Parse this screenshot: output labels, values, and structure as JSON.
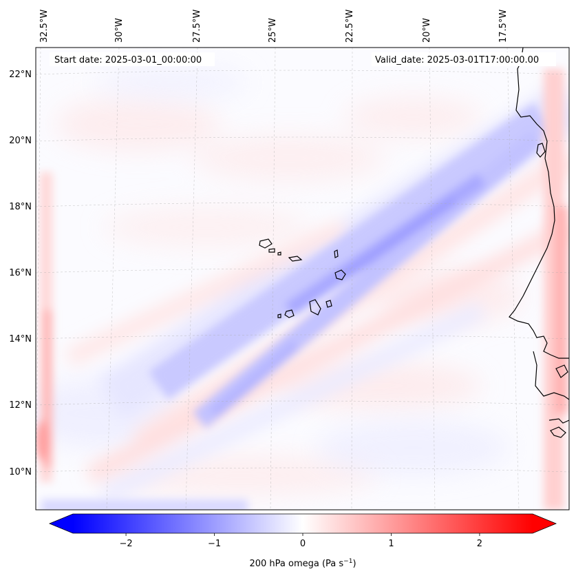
{
  "map": {
    "start_date": "Start date: 2025-03-01_00:00:00",
    "valid_date": "Valid_date: 2025-03-01T17:00:00.00",
    "lon_labels": [
      "32.5°W",
      "30°W",
      "27.5°W",
      "25°W",
      "22.5°W",
      "20°W",
      "17.5°W"
    ],
    "lat_labels": [
      "22°N",
      "20°N",
      "18°N",
      "16°N",
      "14°N",
      "12°N",
      "10°N"
    ],
    "field": "200 hPa omega",
    "field_units": "Pa s−1"
  },
  "colorbar": {
    "label_main": "200 hPa omega (Pa s",
    "label_sup": "−1",
    "label_close": ")",
    "ticks": [
      "−2",
      "−1",
      "0",
      "1",
      "2"
    ],
    "tick_values": [
      -2,
      -1,
      0,
      1,
      2
    ],
    "range": [
      -2.6,
      2.6
    ],
    "extend": "both",
    "colormap": "bwr",
    "color_min": "#0000ff",
    "color_mid": "#ffffff",
    "color_max": "#ff0000"
  }
}
